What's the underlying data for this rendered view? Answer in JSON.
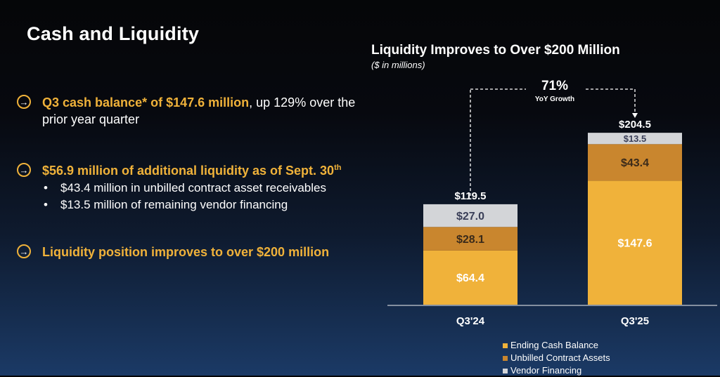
{
  "slide": {
    "title": "Cash and Liquidity"
  },
  "bullets": [
    {
      "highlight": "Q3 cash balance* of $147.6 million",
      "rest": ", up 129% over the prior year quarter"
    },
    {
      "highlight": "$56.9 million of additional liquidity as of Sept. 30",
      "sup": "th",
      "sub": [
        "$43.4 million in unbilled contract asset receivables",
        "$13.5 million of remaining vendor financing"
      ]
    },
    {
      "highlight": "Liquidity position improves to over $200 million"
    }
  ],
  "icons": {
    "bullet": "arrow-right-circle-icon",
    "sub_bullet": "•"
  },
  "colors": {
    "accent": "#f0b23a",
    "cash": "#f0b23a",
    "unbilled": "#c9862e",
    "vendor": "#d3d5d8"
  },
  "chart_data": {
    "type": "bar",
    "stacked": true,
    "title": "Liquidity Improves to Over $200 Million",
    "subtitle": "($ in millions)",
    "categories": [
      "Q3'24",
      "Q3'25"
    ],
    "series": [
      {
        "name": "Ending Cash Balance",
        "values": [
          64.4,
          147.6
        ],
        "labels": [
          "$64.4",
          "$147.6"
        ],
        "color": "#f0b23a"
      },
      {
        "name": "Unbilled Contract Assets",
        "values": [
          28.1,
          43.4
        ],
        "labels": [
          "$28.1",
          "$43.4"
        ],
        "color": "#c9862e"
      },
      {
        "name": "Vendor Financing",
        "values": [
          27.0,
          13.5
        ],
        "labels": [
          "$27.0",
          "$13.5"
        ],
        "color": "#d3d5d8"
      }
    ],
    "totals": [
      "$119.5",
      "$204.5"
    ],
    "annotation": {
      "value": "71%",
      "label": "YoY Growth"
    },
    "ylim": [
      0,
      228
    ],
    "grid": false,
    "legend": "bottom-right"
  }
}
